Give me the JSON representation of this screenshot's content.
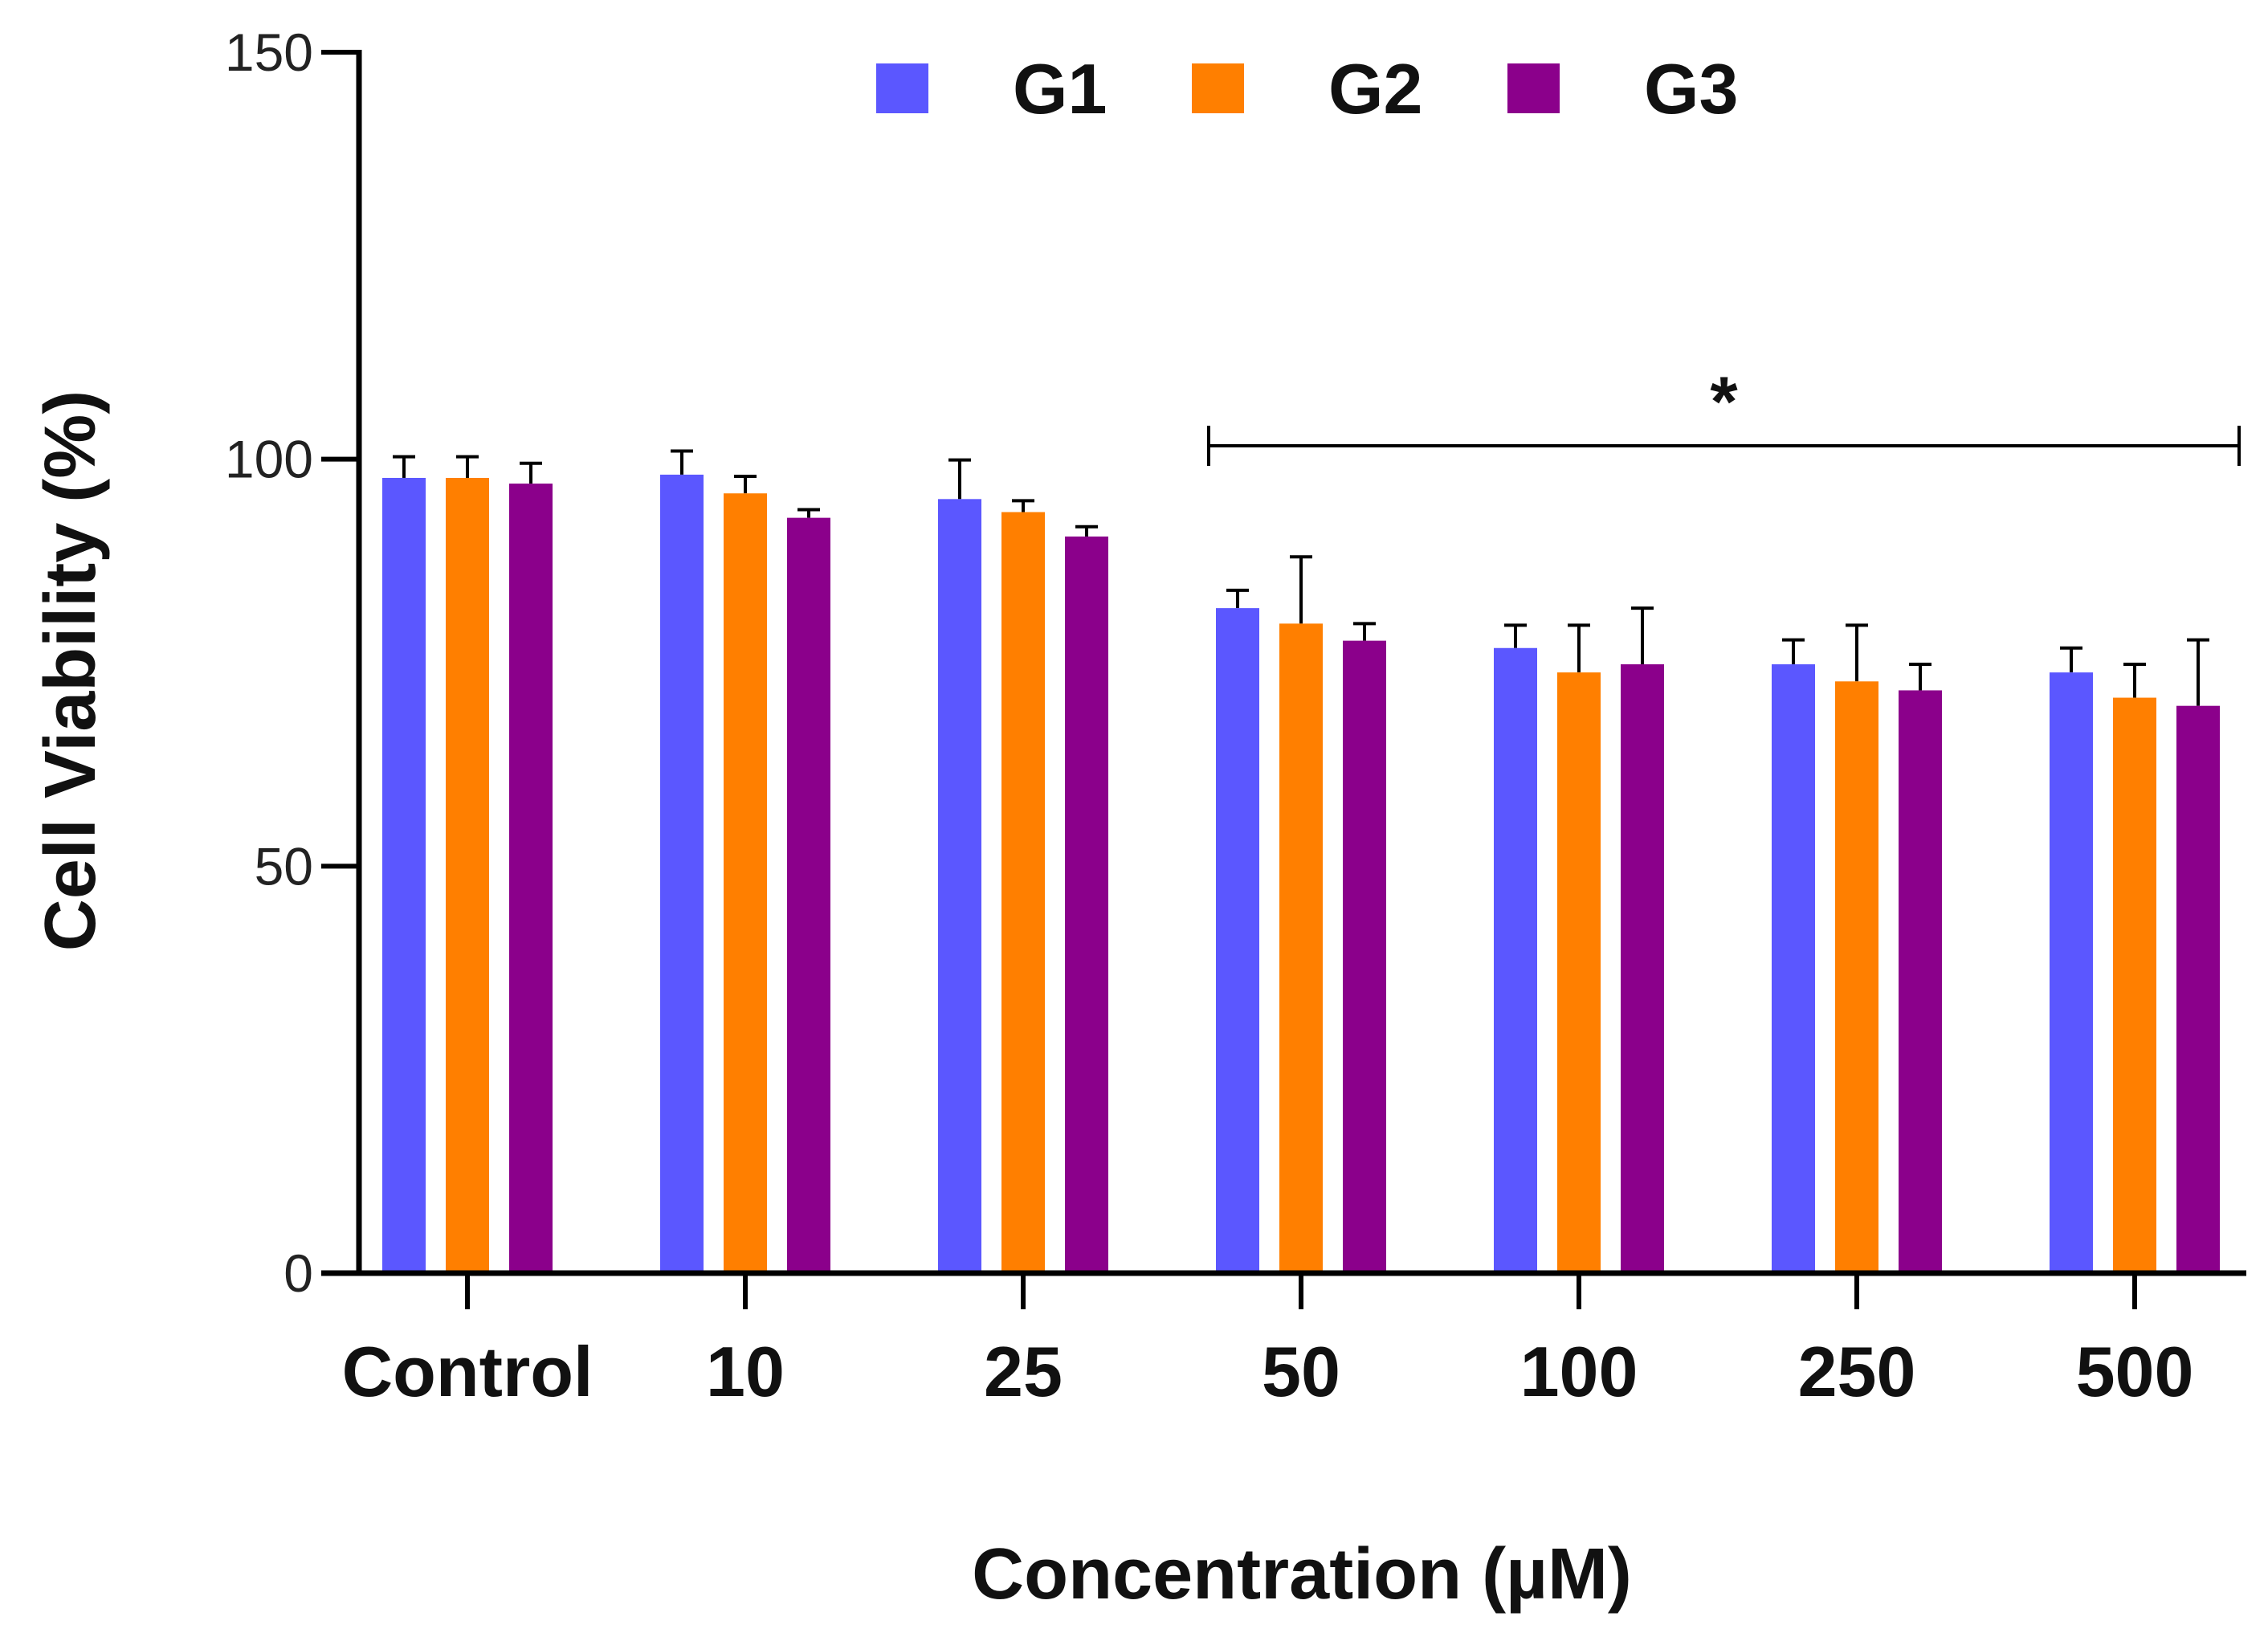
{
  "chart_data": {
    "type": "bar",
    "title": "",
    "xlabel": "Concentration (µM)",
    "ylabel": "Cell Viability (%)",
    "ylim": [
      0,
      150
    ],
    "yticks": [
      "0",
      "50",
      "100",
      "150"
    ],
    "categories": [
      "Control",
      "10",
      "25",
      "50",
      "100",
      "250",
      "500"
    ],
    "legend_position": "top-center",
    "series": [
      {
        "name": "G1",
        "color": "#5B57FF",
        "values": [
          97.7,
          98.1,
          95.1,
          81.7,
          76.8,
          74.8,
          73.8
        ],
        "errors": [
          2.6,
          2.9,
          4.8,
          2.2,
          2.8,
          3.0,
          3.0
        ]
      },
      {
        "name": "G2",
        "color": "#FF7F00",
        "values": [
          97.7,
          95.8,
          93.5,
          79.8,
          73.8,
          72.7,
          70.7
        ],
        "errors": [
          2.6,
          2.1,
          1.4,
          8.2,
          5.8,
          6.9,
          4.1
        ]
      },
      {
        "name": "G3",
        "color": "#8B008B",
        "values": [
          97.0,
          92.8,
          90.5,
          77.7,
          74.8,
          71.6,
          69.7
        ],
        "errors": [
          2.5,
          1.0,
          1.2,
          2.1,
          6.9,
          3.2,
          8.1
        ]
      }
    ],
    "annotations": [
      {
        "text": "*",
        "span": [
          "50",
          "500"
        ]
      }
    ]
  }
}
